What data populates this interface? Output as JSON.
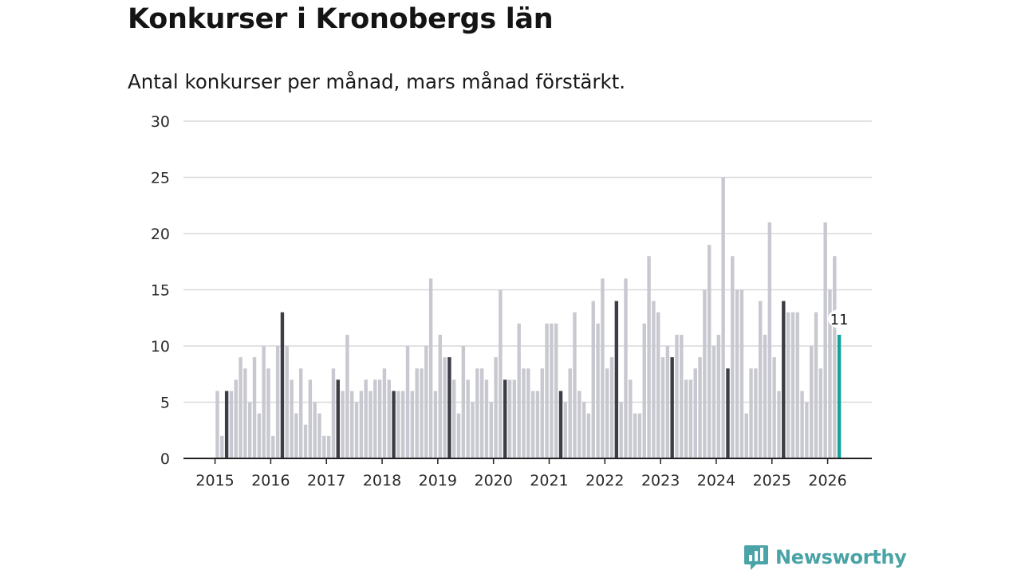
{
  "title": "Konkurser i Kronobergs län",
  "subtitle": "Antal konkurser per månad, mars månad förstärkt.",
  "brand": {
    "name": "Newsworthy",
    "icon": "newsworthy-logo-icon"
  },
  "colors": {
    "bar": "#c8c8d0",
    "highlight": "#3d3d46",
    "latest": "#14a39a",
    "grid": "#d9d9d9",
    "axis": "#222222"
  },
  "chart_data": {
    "type": "bar",
    "title": "Konkurser i Kronobergs län",
    "subtitle": "Antal konkurser per månad, mars månad förstärkt.",
    "xlabel": "",
    "ylabel": "",
    "ylim": [
      0,
      30
    ],
    "yticks": [
      "0",
      "5",
      "10",
      "15",
      "20",
      "25",
      "30"
    ],
    "year_labels": [
      "2015",
      "2016",
      "2017",
      "2018",
      "2019",
      "2020",
      "2021",
      "2022",
      "2023",
      "2024",
      "2025",
      "2026"
    ],
    "start": "2015-01",
    "highlight_month": "mars",
    "values": [
      6,
      2,
      6,
      6,
      7,
      9,
      8,
      5,
      9,
      4,
      10,
      8,
      2,
      10,
      13,
      10,
      7,
      4,
      8,
      3,
      7,
      5,
      4,
      2,
      2,
      8,
      7,
      6,
      11,
      6,
      5,
      6,
      7,
      6,
      7,
      7,
      8,
      7,
      6,
      6,
      6,
      10,
      6,
      8,
      8,
      10,
      16,
      6,
      11,
      9,
      9,
      7,
      4,
      10,
      7,
      5,
      8,
      8,
      7,
      5,
      9,
      15,
      7,
      7,
      7,
      12,
      8,
      8,
      6,
      6,
      8,
      12,
      12,
      12,
      6,
      5,
      8,
      13,
      6,
      5,
      4,
      14,
      12,
      16,
      8,
      9,
      14,
      5,
      16,
      7,
      4,
      4,
      12,
      18,
      14,
      13,
      9,
      10,
      9,
      11,
      11,
      7,
      7,
      8,
      9,
      15,
      19,
      10,
      11,
      25,
      8,
      18,
      15,
      15,
      4,
      8,
      8,
      14,
      11,
      21,
      9,
      6,
      14,
      13,
      13,
      13,
      6,
      5,
      10,
      13,
      8,
      21,
      15,
      18,
      11
    ],
    "latest_label": "11"
  }
}
